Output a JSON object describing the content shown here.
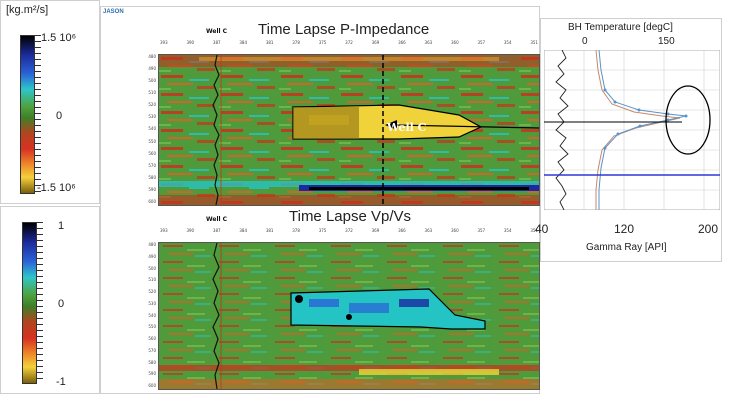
{
  "colorbar_top": {
    "unit": "[kg.m²/s]",
    "max": "1.5 10⁶",
    "mid": "0",
    "min": "-1.5 10⁶"
  },
  "colorbar_bottom": {
    "max": "1",
    "mid": "0",
    "min": "-1"
  },
  "software_logo": "JASON",
  "panel_top": {
    "title": "Time Lapse P-Impedance",
    "well_label": "Well C",
    "anomaly_label": "Well C",
    "depth_ticks": [
      "480",
      "490",
      "500",
      "510",
      "520",
      "530",
      "540",
      "550",
      "560",
      "570",
      "580",
      "590",
      "600"
    ],
    "trace_ticks": [
      "393",
      "390",
      "387",
      "384",
      "381",
      "378",
      "375",
      "372",
      "369",
      "366",
      "363",
      "360",
      "357",
      "354",
      "351"
    ]
  },
  "panel_bottom": {
    "title": "Time Lapse Vp/Vs",
    "well_label": "Well C",
    "depth_ticks": [
      "480",
      "490",
      "500",
      "510",
      "520",
      "530",
      "540",
      "550",
      "560",
      "570",
      "580",
      "590",
      "600"
    ],
    "trace_ticks": [
      "393",
      "390",
      "387",
      "384",
      "381",
      "378",
      "375",
      "372",
      "369",
      "366",
      "363",
      "360",
      "357",
      "354",
      "351"
    ]
  },
  "bh_panel": {
    "top_title": "BH Temperature [degC]",
    "top_ticks": [
      "0",
      "150"
    ],
    "bottom_ticks": [
      "40",
      "120",
      "200"
    ],
    "bottom_title": "Gamma Ray [API]"
  },
  "colors": {
    "green": "#4f9a3a",
    "red": "#c8321e",
    "yellow": "#f0d23a",
    "cyan": "#25c4c4",
    "blue": "#1a2aa0",
    "black": "#000000",
    "olive": "#8a6f10"
  }
}
